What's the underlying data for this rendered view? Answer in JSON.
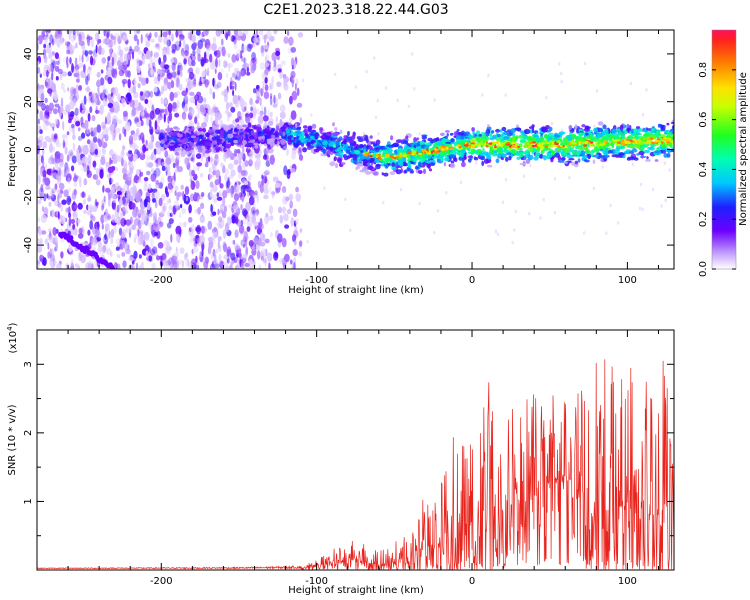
{
  "title": "C2E1.2023.318.22.44.G03",
  "chart_data": [
    {
      "type": "heatmap",
      "xlabel": "Height of straight line (km)",
      "ylabel": "Frequency (Hz)",
      "xlim": [
        -280,
        130
      ],
      "ylim": [
        -50,
        50
      ],
      "x_ticks": [
        -200,
        -100,
        0,
        100
      ],
      "y_ticks": [
        -40,
        -20,
        0,
        20,
        40
      ],
      "colorbar": {
        "label": "Normalized spectral amplitude",
        "range": [
          0,
          0.96
        ],
        "ticks": [
          "0.0",
          "0.2",
          "0.4",
          "0.6",
          "0.8"
        ]
      },
      "ridge": {
        "description_points_x": [
          -190,
          -150,
          -120,
          -100,
          -80,
          -60,
          -50,
          -30,
          0,
          30,
          60,
          90,
          130
        ],
        "description_points_y": [
          4,
          5,
          6,
          4,
          0,
          -3,
          -3,
          -1,
          2,
          2,
          2,
          3,
          4
        ]
      }
    },
    {
      "type": "line",
      "xlabel": "Height of straight line (km)",
      "ylabel": "SNR (10 * v/v)",
      "y_multiplier": "(x10^4)",
      "xlim": [
        -280,
        130
      ],
      "ylim": [
        0,
        3.5
      ],
      "x_ticks": [
        -200,
        -100,
        0,
        100
      ],
      "y_ticks": [
        1,
        2,
        3
      ],
      "color": "#e8231c",
      "envelope": {
        "x": [
          -280,
          -150,
          -110,
          -100,
          -90,
          -80,
          -70,
          -60,
          -50,
          -40,
          -30,
          -20,
          -10,
          0,
          10,
          20,
          30,
          40,
          50,
          60,
          70,
          80,
          90,
          100,
          110,
          120,
          130
        ],
        "base": [
          0.02,
          0.02,
          0.02,
          0.05,
          0.12,
          0.18,
          0.12,
          0.08,
          0.12,
          0.22,
          0.35,
          0.4,
          0.5,
          0.55,
          0.8,
          0.85,
          0.95,
          1.15,
          1.3,
          1.35,
          1.15,
          0.95,
          0.9,
          0.95,
          0.85,
          0.8,
          0.85
        ],
        "peak": [
          0.03,
          0.04,
          0.06,
          0.15,
          0.3,
          0.45,
          0.4,
          0.3,
          0.4,
          0.7,
          1.1,
          1.3,
          2.1,
          1.9,
          2.8,
          2.3,
          2.4,
          2.6,
          2.6,
          2.5,
          3.05,
          3.2,
          3.1,
          3.0,
          3.0,
          3.1,
          3.1
        ]
      }
    }
  ]
}
